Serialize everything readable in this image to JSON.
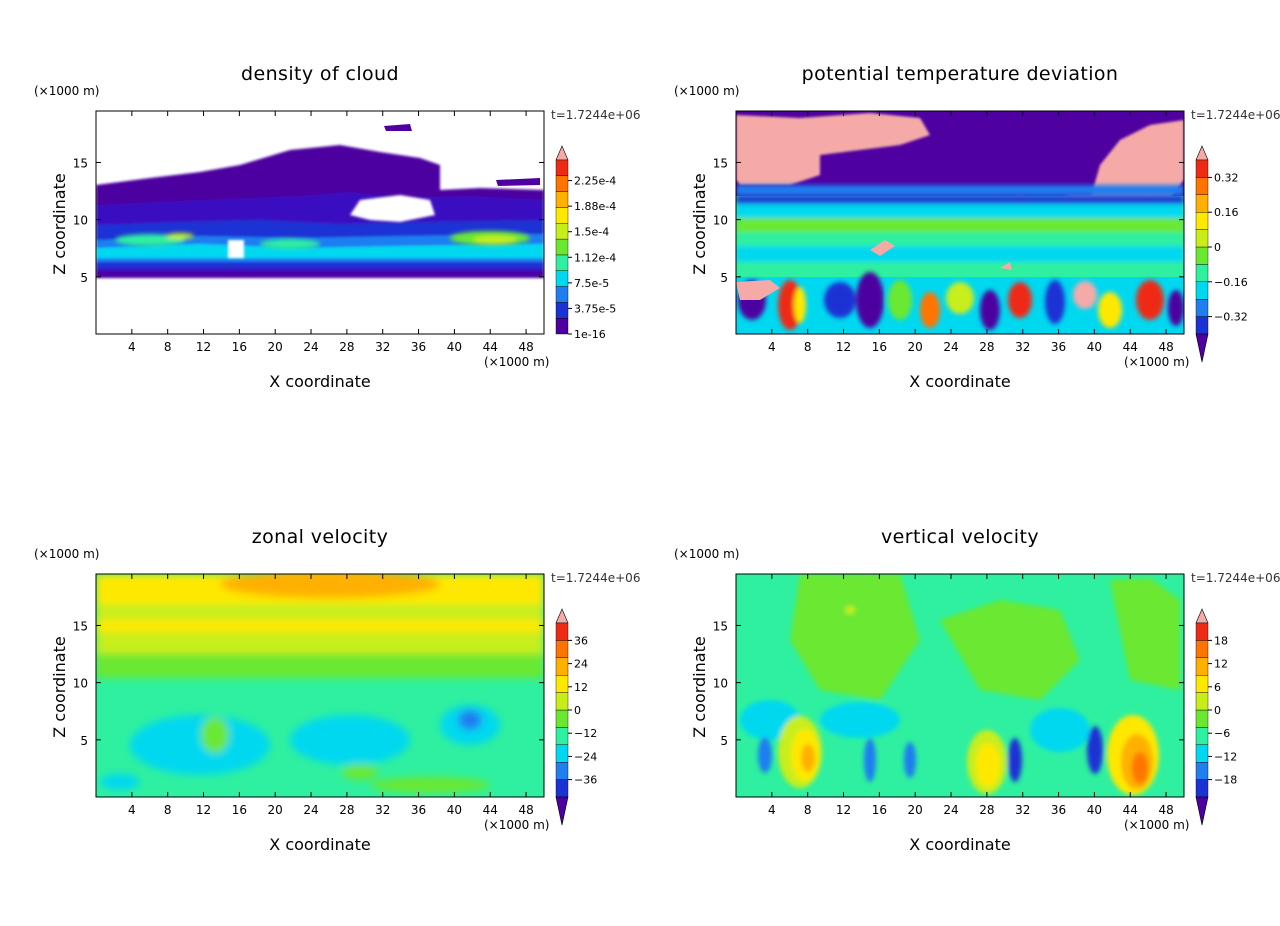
{
  "figure": {
    "time_label": "t=1.7244e+06",
    "x_unit": "(×1000 m)",
    "z_unit": "(×1000 m)"
  },
  "chart_data": [
    {
      "type": "heatmap",
      "title": "density of cloud",
      "xlabel": "X coordinate",
      "ylabel": "Z coordinate",
      "x_ticks": [
        4,
        8,
        12,
        16,
        20,
        24,
        28,
        32,
        36,
        40,
        44,
        48
      ],
      "y_ticks": [
        5,
        10,
        15
      ],
      "xlim": [
        0,
        50
      ],
      "ylim": [
        0,
        19.5
      ],
      "colorbar": {
        "labels": [
          "2.25e-4",
          "1.88e-4",
          "1.5e-4",
          "1.12e-4",
          "7.5e-5",
          "3.75e-5",
          "1e-16"
        ],
        "colors": [
          "#4e00a0",
          "#1b33d4",
          "#1f7ef0",
          "#00d8f0",
          "#2ef0a0",
          "#6ae830",
          "#c8ee1a",
          "#ffe800",
          "#ffb000",
          "#ff7400",
          "#ee2a14",
          "#f5aaa8"
        ],
        "arrow_bottom": false
      }
    },
    {
      "type": "heatmap",
      "title": "potential temperature deviation",
      "xlabel": "X coordinate",
      "ylabel": "Z coordinate",
      "x_ticks": [
        4,
        8,
        12,
        16,
        20,
        24,
        28,
        32,
        36,
        40,
        44,
        48
      ],
      "y_ticks": [
        5,
        10,
        15
      ],
      "xlim": [
        0,
        50
      ],
      "ylim": [
        0,
        19.5
      ],
      "colorbar": {
        "labels": [
          "0.32",
          "0.16",
          "0",
          "−0.16",
          "−0.32"
        ],
        "colors": [
          "#4e00a0",
          "#1b33d4",
          "#1f7ef0",
          "#00d8f0",
          "#2ef0a0",
          "#6ae830",
          "#c8ee1a",
          "#ffe800",
          "#ffb000",
          "#ff7400",
          "#ee2a14",
          "#f5aaa8"
        ],
        "arrow_bottom": true
      }
    },
    {
      "type": "heatmap",
      "title": "zonal velocity",
      "xlabel": "X coordinate",
      "ylabel": "Z coordinate",
      "x_ticks": [
        4,
        8,
        12,
        16,
        20,
        24,
        28,
        32,
        36,
        40,
        44,
        48
      ],
      "y_ticks": [
        5,
        10,
        15
      ],
      "xlim": [
        0,
        50
      ],
      "ylim": [
        0,
        19.5
      ],
      "colorbar": {
        "labels": [
          "36",
          "24",
          "12",
          "0",
          "−12",
          "−24",
          "−36"
        ],
        "colors": [
          "#4e00a0",
          "#1b33d4",
          "#1f7ef0",
          "#00d8f0",
          "#2ef0a0",
          "#6ae830",
          "#c8ee1a",
          "#ffe800",
          "#ffb000",
          "#ff7400",
          "#ee2a14",
          "#f5aaa8"
        ],
        "arrow_bottom": true
      }
    },
    {
      "type": "heatmap",
      "title": "vertical velocity",
      "xlabel": "X coordinate",
      "ylabel": "Z coordinate",
      "x_ticks": [
        4,
        8,
        12,
        16,
        20,
        24,
        28,
        32,
        36,
        40,
        44,
        48
      ],
      "y_ticks": [
        5,
        10,
        15
      ],
      "xlim": [
        0,
        50
      ],
      "ylim": [
        0,
        19.5
      ],
      "colorbar": {
        "labels": [
          "18",
          "12",
          "6",
          "0",
          "−6",
          "−12",
          "−18"
        ],
        "colors": [
          "#4e00a0",
          "#1b33d4",
          "#1f7ef0",
          "#00d8f0",
          "#2ef0a0",
          "#6ae830",
          "#c8ee1a",
          "#ffe800",
          "#ffb000",
          "#ff7400",
          "#ee2a14",
          "#f5aaa8"
        ],
        "arrow_bottom": true
      }
    }
  ]
}
